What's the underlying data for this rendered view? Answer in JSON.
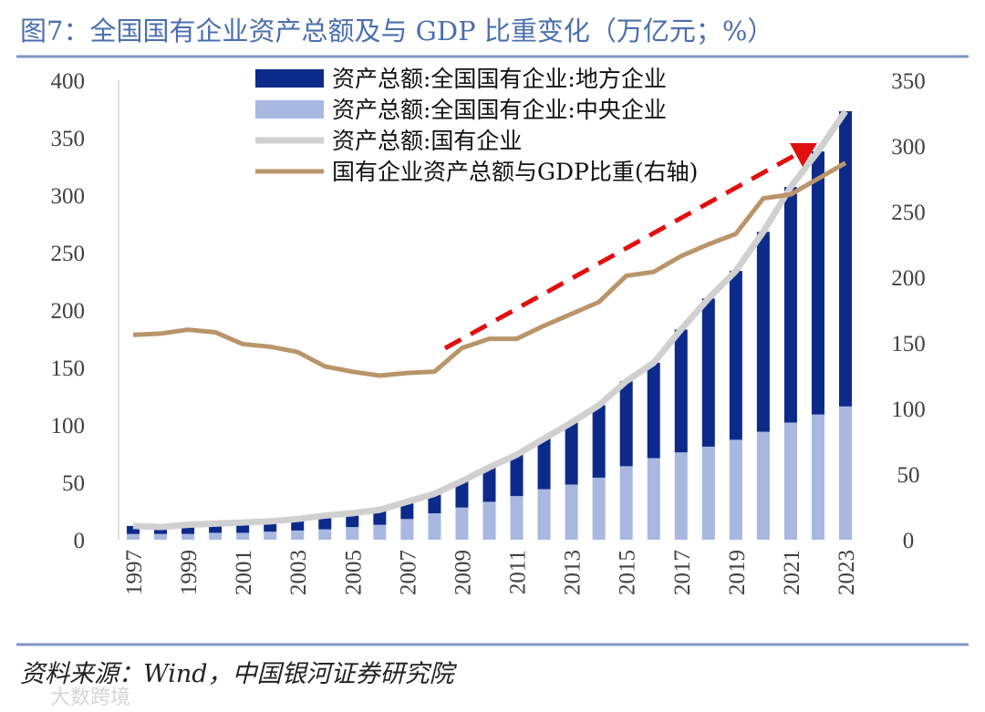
{
  "title": "图7：全国国有企业资产总额及与 GDP 比重变化（万亿元；%）",
  "source": "资料来源：Wind，中国银河证券研究院",
  "watermark": "大数跨境",
  "colors": {
    "title": "#4a6fb0",
    "rule": "#7f96c4",
    "local": "#0c2a8a",
    "central": "#a8b8e0",
    "total": "#d0d0d0",
    "ratio": "#b8956a",
    "arrow": "#e01010"
  },
  "chart_data": {
    "type": "bar",
    "title": "全国国有企业资产总额及与 GDP 比重变化（万亿元；%）",
    "categories": [
      "1997",
      "1998",
      "1999",
      "2000",
      "2001",
      "2002",
      "2003",
      "2004",
      "2005",
      "2006",
      "2007",
      "2008",
      "2009",
      "2010",
      "2011",
      "2012",
      "2013",
      "2014",
      "2015",
      "2016",
      "2017",
      "2018",
      "2019",
      "2020",
      "2021",
      "2022",
      "2023"
    ],
    "x_tick_labels": [
      "1997",
      "1999",
      "2001",
      "2003",
      "2005",
      "2007",
      "2009",
      "2011",
      "2013",
      "2015",
      "2017",
      "2019",
      "2021",
      "2023"
    ],
    "left_axis": {
      "ylim": [
        0,
        400
      ],
      "ticks": [
        "0",
        "50",
        "100",
        "150",
        "200",
        "250",
        "300",
        "350",
        "400"
      ]
    },
    "right_axis": {
      "ylim": [
        0,
        350
      ],
      "ticks": [
        "0",
        "50",
        "100",
        "150",
        "200",
        "250",
        "300",
        "350"
      ]
    },
    "series": [
      {
        "name": "资产总额:全国国有企业:地方企业",
        "type": "stacked-bar",
        "axis": "left",
        "values": [
          7,
          5,
          7,
          7,
          8,
          8,
          9,
          11,
          11,
          12,
          15,
          16,
          23,
          30,
          36,
          44,
          54,
          63,
          74,
          83,
          107,
          129,
          147,
          174,
          205,
          229,
          257
        ]
      },
      {
        "name": "资产总额:全国国有企业:中央企业",
        "type": "stacked-bar",
        "axis": "left",
        "values": [
          5,
          5,
          5,
          6,
          6,
          7,
          8,
          9,
          11,
          13,
          18,
          23,
          28,
          33,
          38,
          44,
          48,
          54,
          64,
          71,
          76,
          81,
          87,
          94,
          102,
          109,
          116
        ]
      },
      {
        "name": "资产总额:国有企业",
        "type": "line",
        "axis": "left",
        "values": [
          12,
          11,
          13,
          14,
          15,
          16,
          18,
          21,
          23,
          26,
          33,
          40,
          51,
          63,
          74,
          88,
          102,
          117,
          138,
          154,
          183,
          210,
          234,
          268,
          307,
          338,
          373
        ]
      },
      {
        "name": "国有企业资产总额与GDP比重(右轴)",
        "type": "line",
        "axis": "right",
        "values": [
          156,
          157,
          160,
          158,
          149,
          147,
          143,
          132,
          128,
          125,
          127,
          128,
          146,
          153,
          153,
          163,
          172,
          181,
          201,
          204,
          216,
          225,
          233,
          260,
          263,
          275,
          287
        ]
      }
    ],
    "legend": "top-center",
    "annotation": "red dashed upward arrow 2008→2022"
  }
}
